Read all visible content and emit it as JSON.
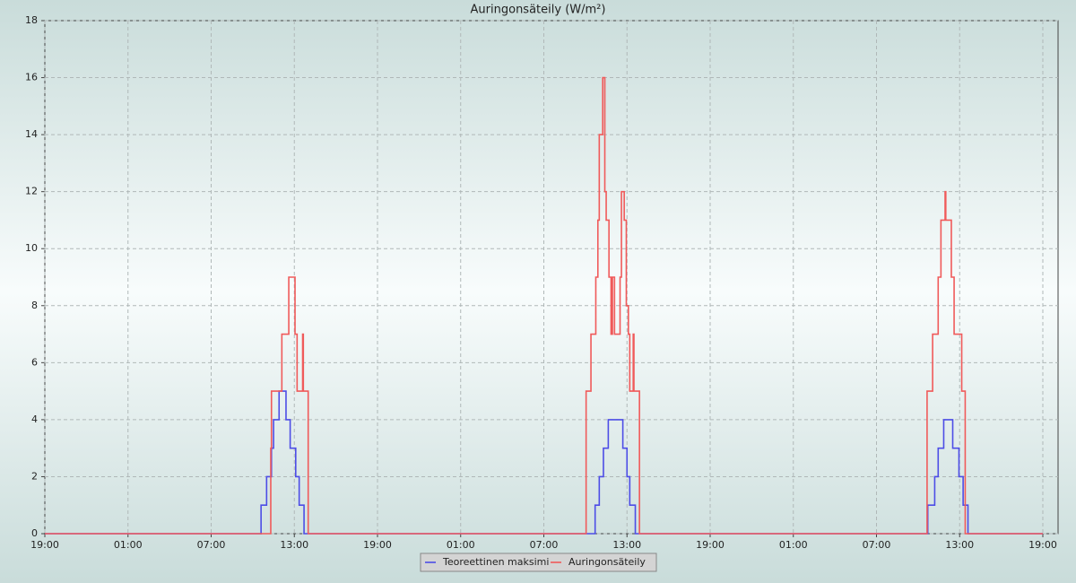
{
  "chart_data": {
    "type": "step",
    "title": "Auringonsäteily (W/m²)",
    "xlim": [
      0,
      73.1
    ],
    "xticks": [
      {
        "value": 0,
        "label": "19:00"
      },
      {
        "value": 6,
        "label": "01:00"
      },
      {
        "value": 12,
        "label": "07:00"
      },
      {
        "value": 18,
        "label": "13:00"
      },
      {
        "value": 24,
        "label": "19:00"
      },
      {
        "value": 30,
        "label": "01:00"
      },
      {
        "value": 36,
        "label": "07:00"
      },
      {
        "value": 42,
        "label": "13:00"
      },
      {
        "value": 48,
        "label": "19:00"
      },
      {
        "value": 54,
        "label": "01:00"
      },
      {
        "value": 60,
        "label": "07:00"
      },
      {
        "value": 66,
        "label": "13:00"
      },
      {
        "value": 72,
        "label": "19:00"
      }
    ],
    "ylim": [
      0,
      18
    ],
    "yticks": [
      0,
      2,
      4,
      6,
      8,
      10,
      12,
      14,
      16,
      18
    ],
    "grid": true,
    "series": [
      {
        "name": "Teoreettinen maksimi",
        "color": "#4d4de6",
        "x": [
          0,
          15.6,
          16.0,
          16.35,
          16.5,
          16.9,
          17.4,
          17.7,
          18.1,
          18.35,
          18.7,
          39.7,
          40.0,
          40.3,
          40.65,
          41.7,
          42.0,
          42.2,
          42.6,
          63.7,
          64.2,
          64.45,
          64.85,
          65.5,
          65.95,
          66.25,
          66.6,
          72
        ],
        "values": [
          0,
          1,
          2,
          3,
          4,
          5,
          4,
          3,
          2,
          1,
          0,
          1,
          2,
          3,
          4,
          3,
          2,
          1,
          0,
          1,
          2,
          3,
          4,
          3,
          2,
          1,
          0,
          0
        ]
      },
      {
        "name": "Auringonsäteily",
        "color": "#f05a5a",
        "x": [
          0,
          16.3,
          16.35,
          17.1,
          17.6,
          18.05,
          18.2,
          18.6,
          18.65,
          19.0,
          39.05,
          39.4,
          39.75,
          39.9,
          40.0,
          40.25,
          40.4,
          40.5,
          40.7,
          40.85,
          40.95,
          41.1,
          41.5,
          41.6,
          41.8,
          41.95,
          42.1,
          42.2,
          42.45,
          42.5,
          42.9,
          63.65,
          64.05,
          64.45,
          64.65,
          64.95,
          65.0,
          65.4,
          65.6,
          66.15,
          66.4,
          72
        ],
        "values": [
          0,
          3,
          5,
          7,
          9,
          7,
          5,
          7,
          5,
          0,
          5,
          7,
          9,
          11,
          14,
          16,
          12,
          11,
          9,
          7,
          9,
          7,
          9,
          12,
          11,
          8,
          7,
          5,
          7,
          5,
          0,
          5,
          7,
          9,
          11,
          12,
          11,
          9,
          7,
          5,
          0,
          0
        ]
      }
    ]
  }
}
